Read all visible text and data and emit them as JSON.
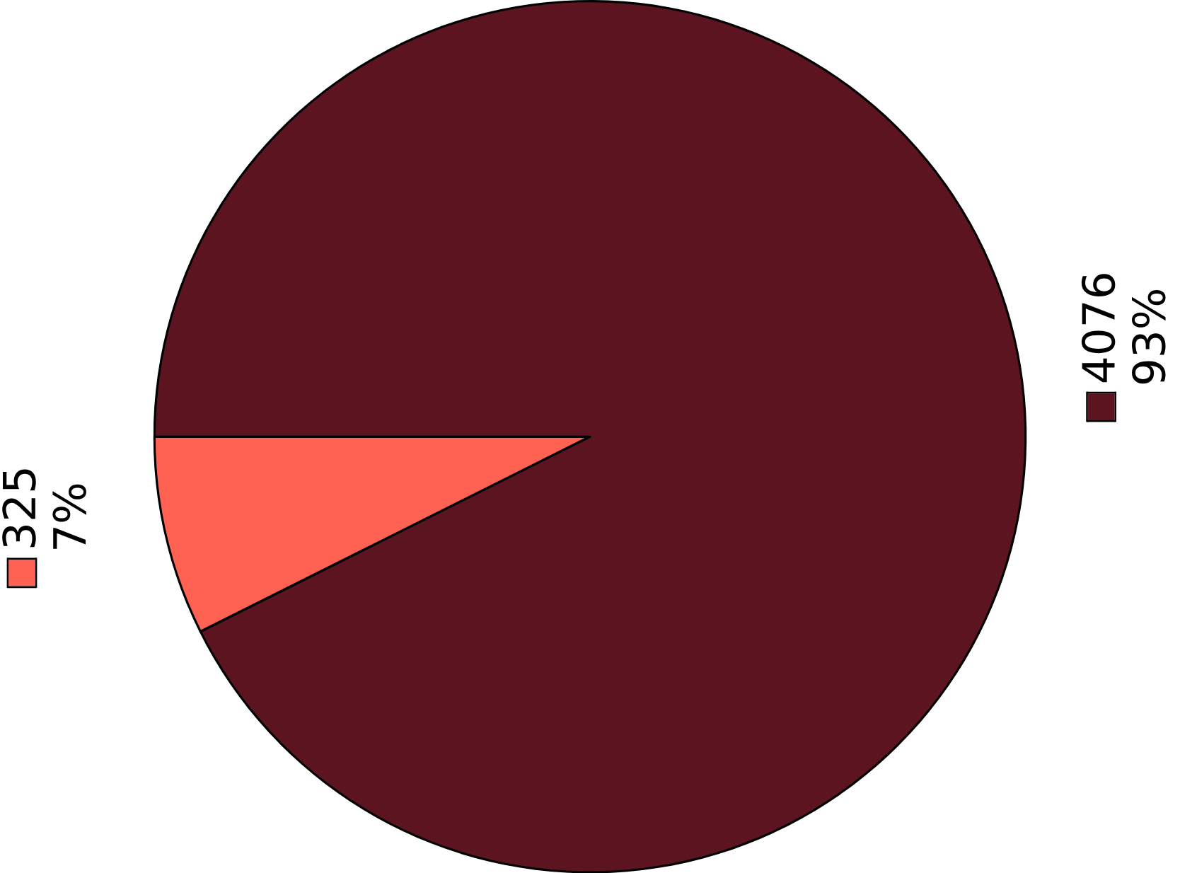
{
  "chart_data": {
    "type": "pie",
    "categories": [
      null,
      null
    ],
    "values": [
      325,
      4076
    ],
    "colors": [
      "#ff6252",
      "#5c1520"
    ],
    "data_labels": true,
    "annotations": [
      "7%",
      "93%"
    ]
  }
}
